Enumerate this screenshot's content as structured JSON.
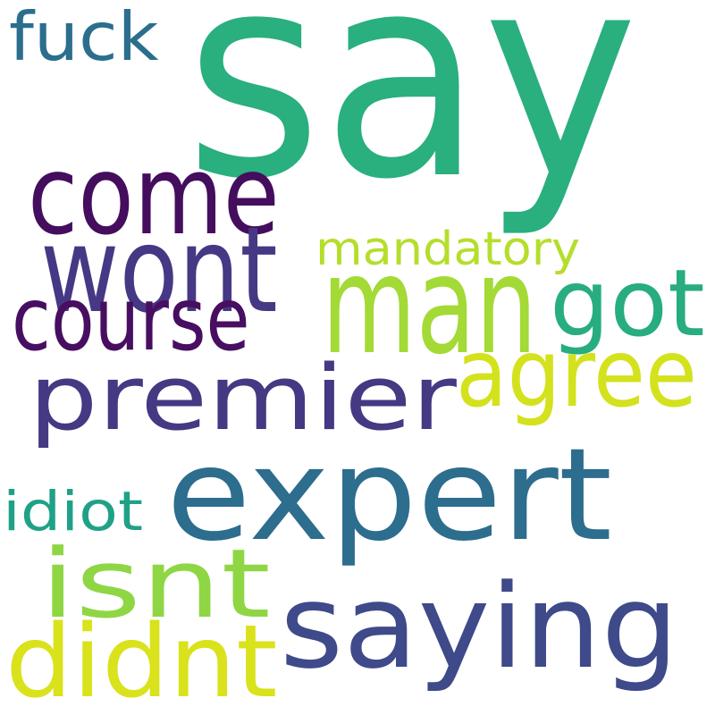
{
  "words": [
    {
      "key": "say",
      "text": "say",
      "color": "#2aaf7f"
    },
    {
      "key": "fuck",
      "text": "fuck",
      "color": "#2b6e8d"
    },
    {
      "key": "come",
      "text": "come",
      "color": "#440d5e"
    },
    {
      "key": "wont",
      "text": "wont",
      "color": "#463884"
    },
    {
      "key": "mandatory",
      "text": "mandatory",
      "color": "#b5de2c"
    },
    {
      "key": "man",
      "text": "man",
      "color": "#a3da36"
    },
    {
      "key": "got",
      "text": "got",
      "color": "#27ad80"
    },
    {
      "key": "course",
      "text": "course",
      "color": "#470e61"
    },
    {
      "key": "premier",
      "text": "premier",
      "color": "#443982"
    },
    {
      "key": "agree",
      "text": "agree",
      "color": "#d3e21c"
    },
    {
      "key": "expert",
      "text": "expert",
      "color": "#2d6d8e"
    },
    {
      "key": "idiot",
      "text": "idiot",
      "color": "#1fa187"
    },
    {
      "key": "isnt",
      "text": "isnt",
      "color": "#8fd644"
    },
    {
      "key": "saying",
      "text": "saying",
      "color": "#3e4a89"
    },
    {
      "key": "didnt",
      "text": "didnt",
      "color": "#d9e21b"
    }
  ]
}
